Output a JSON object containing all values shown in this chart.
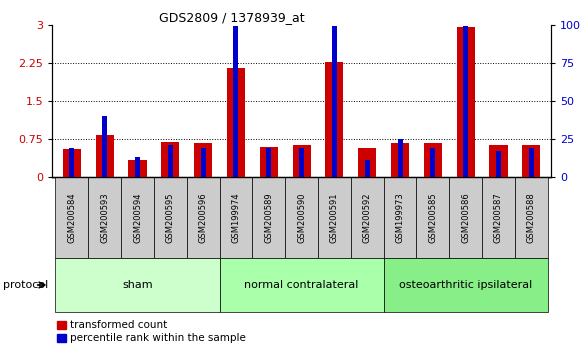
{
  "title": "GDS2809 / 1378939_at",
  "samples": [
    "GSM200584",
    "GSM200593",
    "GSM200594",
    "GSM200595",
    "GSM200596",
    "GSM199974",
    "GSM200589",
    "GSM200590",
    "GSM200591",
    "GSM200592",
    "GSM199973",
    "GSM200585",
    "GSM200586",
    "GSM200587",
    "GSM200588"
  ],
  "red_values": [
    0.55,
    0.82,
    0.33,
    0.68,
    0.67,
    2.15,
    0.6,
    0.63,
    2.27,
    0.57,
    0.67,
    0.67,
    2.95,
    0.63,
    0.63
  ],
  "blue_right_values": [
    19,
    40,
    13,
    21,
    19,
    99,
    19,
    19,
    99,
    11,
    25,
    19,
    99,
    17,
    19
  ],
  "groups": [
    {
      "label": "sham",
      "start": 0,
      "end": 5,
      "color": "#ccffcc"
    },
    {
      "label": "normal contralateral",
      "start": 5,
      "end": 10,
      "color": "#aaffaa"
    },
    {
      "label": "osteoarthritic ipsilateral",
      "start": 10,
      "end": 15,
      "color": "#88ee88"
    }
  ],
  "ylim_left": [
    0,
    3
  ],
  "ylim_right": [
    0,
    100
  ],
  "yticks_left": [
    0,
    0.75,
    1.5,
    2.25,
    3.0
  ],
  "yticks_right": [
    0,
    25,
    50,
    75,
    100
  ],
  "ytick_labels_right": [
    "0",
    "25",
    "50",
    "75",
    "100%"
  ],
  "red_color": "#cc0000",
  "blue_color": "#0000cc",
  "bar_edge_color": "#888888",
  "bg_color": "#cccccc",
  "legend_red": "transformed count",
  "legend_blue": "percentile rank within the sample",
  "protocol_label": "protocol"
}
